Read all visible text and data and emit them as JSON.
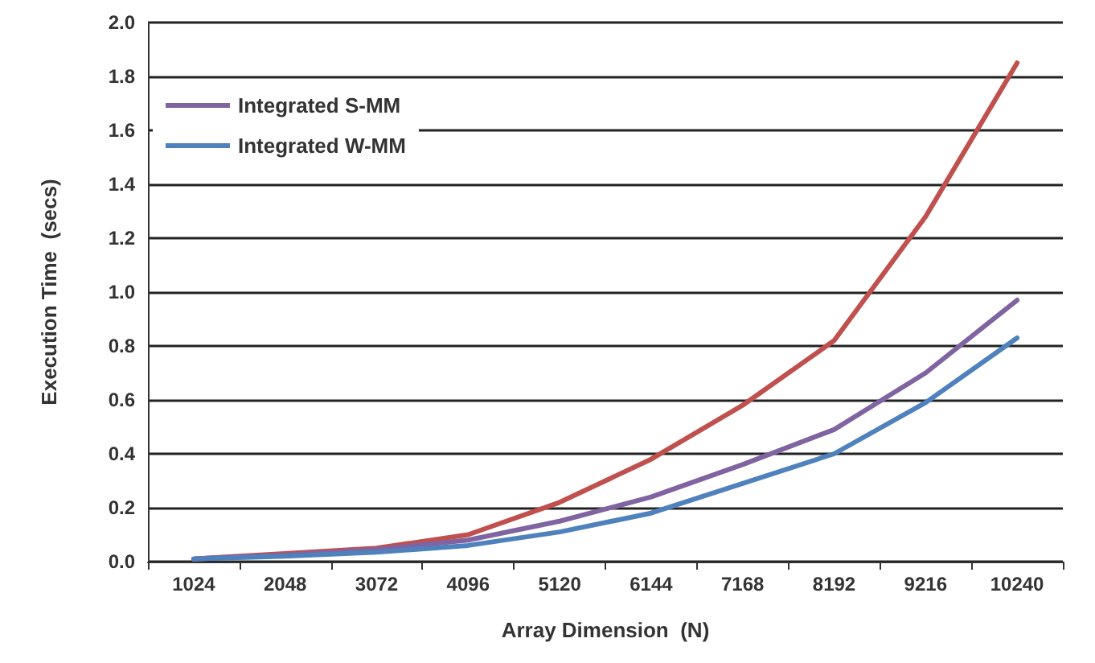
{
  "chart_data": {
    "type": "line",
    "xlabel": "Array Dimension  (N)",
    "ylabel": "Execution Time  (secs)",
    "categories": [
      "1024",
      "2048",
      "3072",
      "4096",
      "5120",
      "6144",
      "7168",
      "8192",
      "9216",
      "10240"
    ],
    "series": [
      {
        "color": "#c0504d",
        "values": [
          0.01,
          0.03,
          0.05,
          0.1,
          0.22,
          0.38,
          0.58,
          0.82,
          1.28,
          1.85
        ]
      },
      {
        "name": "Integrated S-MM",
        "color": "#8064a2",
        "values": [
          0.01,
          0.025,
          0.045,
          0.08,
          0.15,
          0.24,
          0.36,
          0.49,
          0.7,
          0.97
        ]
      },
      {
        "name": "Integrated W-MM",
        "color": "#4f81bd",
        "values": [
          0.01,
          0.02,
          0.035,
          0.06,
          0.11,
          0.18,
          0.29,
          0.4,
          0.59,
          0.83
        ]
      }
    ],
    "ylim": [
      0,
      2.0
    ],
    "yticks": [
      {
        "value": 0,
        "label": "0.0"
      },
      {
        "value": 0.2,
        "label": "0.2"
      },
      {
        "value": 0.4,
        "label": "0.4"
      },
      {
        "value": 0.6,
        "label": "0.6"
      },
      {
        "value": 0.8,
        "label": "0.8"
      },
      {
        "value": 1.0,
        "label": "1.0"
      },
      {
        "value": 1.2,
        "label": "1.2"
      },
      {
        "value": 1.4,
        "label": "1.4"
      },
      {
        "value": 1.6,
        "label": "1.6"
      },
      {
        "value": 1.8,
        "label": "1.8"
      },
      {
        "value": 2.0,
        "label": "2.0"
      }
    ],
    "grid": "y",
    "legend": "top left",
    "marker": "none",
    "line_style": "solid"
  }
}
